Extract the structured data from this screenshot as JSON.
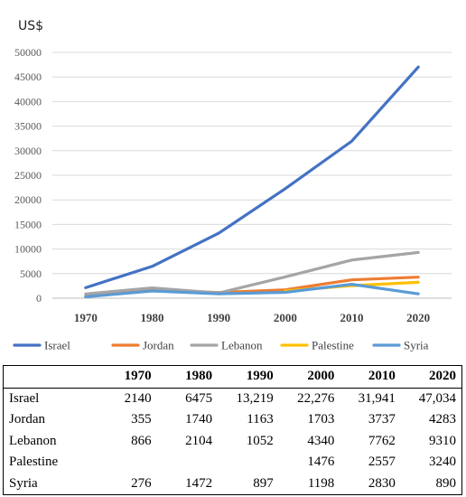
{
  "chart_data": {
    "type": "line",
    "ylabel": "US$",
    "xlabel": "",
    "categories": [
      "1970",
      "1980",
      "1990",
      "2000",
      "2010",
      "2020"
    ],
    "ylim": [
      0,
      50000
    ],
    "yticks": [
      "0",
      "5000",
      "10000",
      "15000",
      "20000",
      "25000",
      "30000",
      "35000",
      "40000",
      "45000",
      "50000"
    ],
    "grid": "horizontal",
    "legend_position": "bottom",
    "series": [
      {
        "name": "Israel",
        "color": "#4472C4",
        "values": [
          2140,
          6475,
          13219,
          22276,
          31941,
          47034
        ]
      },
      {
        "name": "Jordan",
        "color": "#ED7D31",
        "values": [
          355,
          1740,
          1163,
          1703,
          3737,
          4283
        ]
      },
      {
        "name": "Lebanon",
        "color": "#A5A5A5",
        "values": [
          866,
          2104,
          1052,
          4340,
          7762,
          9310
        ]
      },
      {
        "name": "Palestine",
        "color": "#FFC000",
        "values": [
          null,
          null,
          null,
          1476,
          2557,
          3240
        ]
      },
      {
        "name": "Syria",
        "color": "#5B9BD5",
        "values": [
          276,
          1472,
          897,
          1198,
          2830,
          890
        ]
      }
    ]
  },
  "table": {
    "header": [
      "",
      "1970",
      "1980",
      "1990",
      "2000",
      "2010",
      "2020"
    ],
    "rows": [
      [
        "Israel",
        "2140",
        "6475",
        "13,219",
        "22,276",
        "31,941",
        "47,034"
      ],
      [
        "Jordan",
        "355",
        "1740",
        "1163",
        "1703",
        "3737",
        "4283"
      ],
      [
        "Lebanon",
        "866",
        "2104",
        "1052",
        "4340",
        "7762",
        "9310"
      ],
      [
        "Palestine",
        "",
        "",
        "",
        "1476",
        "2557",
        "3240"
      ],
      [
        "Syria",
        "276",
        "1472",
        "897",
        "1198",
        "2830",
        "890"
      ]
    ]
  }
}
